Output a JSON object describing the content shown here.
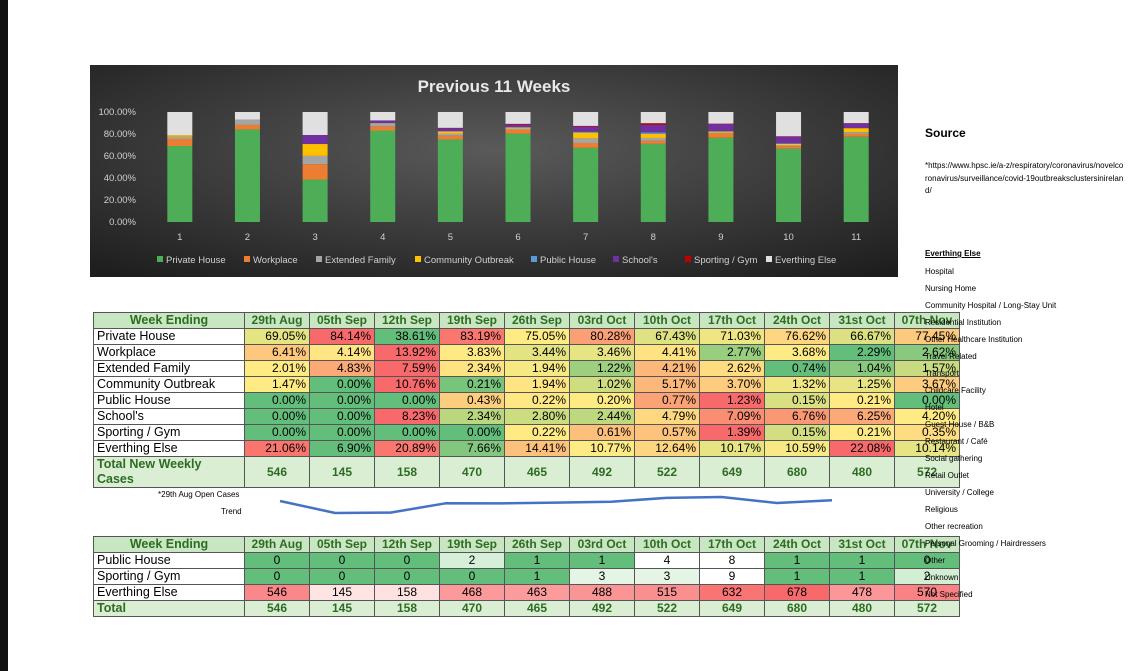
{
  "chart_data": {
    "type": "bar",
    "stacked": true,
    "title": "Previous 11 Weeks",
    "categories": [
      "1",
      "2",
      "3",
      "4",
      "5",
      "6",
      "7",
      "8",
      "9",
      "10",
      "11"
    ],
    "ylim": [
      0,
      100
    ],
    "yticks": [
      "0.00%",
      "20.00%",
      "40.00%",
      "60.00%",
      "80.00%",
      "100.00%"
    ],
    "legend_position": "bottom",
    "series": [
      {
        "name": "Private House",
        "color": "#4eae57",
        "values": [
          69.05,
          84.14,
          38.61,
          83.19,
          75.05,
          80.28,
          67.43,
          71.03,
          76.62,
          66.67,
          77.45
        ]
      },
      {
        "name": "Workplace",
        "color": "#ed7d31",
        "values": [
          6.41,
          4.14,
          13.92,
          3.83,
          3.44,
          3.46,
          4.41,
          2.77,
          3.68,
          2.29,
          2.62
        ]
      },
      {
        "name": "Extended Family",
        "color": "#a5a5a5",
        "values": [
          2.01,
          4.83,
          7.59,
          2.34,
          1.94,
          1.22,
          4.21,
          2.62,
          0.74,
          1.04,
          1.57
        ]
      },
      {
        "name": "Community Outbreak",
        "color": "#ffc000",
        "values": [
          1.47,
          0.0,
          10.76,
          0.21,
          1.94,
          1.02,
          5.17,
          3.7,
          1.32,
          1.25,
          3.67
        ]
      },
      {
        "name": "Public House",
        "color": "#5b9bd5",
        "values": [
          0.0,
          0.0,
          0.0,
          0.43,
          0.22,
          0.2,
          0.77,
          1.23,
          0.15,
          0.21,
          0.0
        ]
      },
      {
        "name": "School's",
        "color": "#7030a0",
        "values": [
          0.0,
          0.0,
          8.23,
          2.34,
          2.8,
          2.44,
          4.79,
          7.09,
          6.76,
          6.25,
          4.2
        ]
      },
      {
        "name": "Sporting / Gym",
        "color": "#c00000",
        "values": [
          0.0,
          0.0,
          0.0,
          0.0,
          0.22,
          0.61,
          0.57,
          1.39,
          0.15,
          0.21,
          0.35
        ]
      },
      {
        "name": "Everthing Else",
        "color": "#e0e0e0",
        "values": [
          21.06,
          6.9,
          20.89,
          7.66,
          14.41,
          10.77,
          12.64,
          10.17,
          10.59,
          22.08,
          10.14
        ]
      }
    ]
  },
  "table1": {
    "header_label": "Week Ending",
    "weeks": [
      "29th Aug",
      "05th Sep",
      "12th Sep",
      "19th Sep",
      "26th Sep",
      "03rd Oct",
      "10th Oct",
      "17th Oct",
      "24th Oct",
      "31st Oct",
      "07th Nov"
    ],
    "rows": [
      {
        "label": "Private House",
        "values": [
          "69.05%",
          "84.14%",
          "38.61%",
          "83.19%",
          "75.05%",
          "80.28%",
          "67.43%",
          "71.03%",
          "76.62%",
          "66.67%",
          "77.45%"
        ]
      },
      {
        "label": "Workplace",
        "values": [
          "6.41%",
          "4.14%",
          "13.92%",
          "3.83%",
          "3.44%",
          "3.46%",
          "4.41%",
          "2.77%",
          "3.68%",
          "2.29%",
          "2.62%"
        ]
      },
      {
        "label": "Extended Family",
        "values": [
          "2.01%",
          "4.83%",
          "7.59%",
          "2.34%",
          "1.94%",
          "1.22%",
          "4.21%",
          "2.62%",
          "0.74%",
          "1.04%",
          "1.57%"
        ]
      },
      {
        "label": "Community Outbreak",
        "values": [
          "1.47%",
          "0.00%",
          "10.76%",
          "0.21%",
          "1.94%",
          "1.02%",
          "5.17%",
          "3.70%",
          "1.32%",
          "1.25%",
          "3.67%"
        ]
      },
      {
        "label": "Public House",
        "values": [
          "0.00%",
          "0.00%",
          "0.00%",
          "0.43%",
          "0.22%",
          "0.20%",
          "0.77%",
          "1.23%",
          "0.15%",
          "0.21%",
          "0.00%"
        ]
      },
      {
        "label": "School's",
        "values": [
          "0.00%",
          "0.00%",
          "8.23%",
          "2.34%",
          "2.80%",
          "2.44%",
          "4.79%",
          "7.09%",
          "6.76%",
          "6.25%",
          "4.20%"
        ]
      },
      {
        "label": "Sporting / Gym",
        "values": [
          "0.00%",
          "0.00%",
          "0.00%",
          "0.00%",
          "0.22%",
          "0.61%",
          "0.57%",
          "1.39%",
          "0.15%",
          "0.21%",
          "0.35%"
        ]
      },
      {
        "label": "Everthing Else",
        "values": [
          "21.06%",
          "6.90%",
          "20.89%",
          "7.66%",
          "14.41%",
          "10.77%",
          "12.64%",
          "10.17%",
          "10.59%",
          "22.08%",
          "10.14%"
        ]
      }
    ],
    "total_label": "Total New Weekly Cases",
    "totals": [
      "546",
      "145",
      "158",
      "470",
      "465",
      "492",
      "522",
      "649",
      "680",
      "480",
      "572"
    ]
  },
  "note_open_cases": "*29th Aug Open Cases",
  "trend_label": "Trend",
  "table2": {
    "header_label": "Week Ending",
    "weeks": [
      "29th Aug",
      "05th Sep",
      "12th Sep",
      "19th Sep",
      "26th Sep",
      "03rd Oct",
      "10th Oct",
      "17th Oct",
      "24th Oct",
      "31st Oct",
      "07th Nov"
    ],
    "rows": [
      {
        "label": "Public House",
        "values": [
          "0",
          "0",
          "0",
          "2",
          "1",
          "1",
          "4",
          "8",
          "1",
          "1",
          "0"
        ]
      },
      {
        "label": "Sporting / Gym",
        "values": [
          "0",
          "0",
          "0",
          "0",
          "1",
          "3",
          "3",
          "9",
          "1",
          "1",
          "2"
        ]
      },
      {
        "label": "Everthing Else",
        "values": [
          "546",
          "145",
          "158",
          "468",
          "463",
          "488",
          "515",
          "632",
          "678",
          "478",
          "570"
        ]
      }
    ],
    "total_label": "Total",
    "totals": [
      "546",
      "145",
      "158",
      "470",
      "465",
      "492",
      "522",
      "649",
      "680",
      "480",
      "572"
    ]
  },
  "source": {
    "title": "Source",
    "text": "*https://www.hpsc.ie/a-z/respiratory/coronavirus/novelcoronavirus/surveillance/covid-19outbreaksclustersinireland/"
  },
  "everything_else": {
    "title": "Everthing Else",
    "items": [
      "Hospital",
      "Nursing Home",
      "Community Hospital / Long-Stay Unit",
      "Residential Institution",
      "Other Healthcare Institution",
      "Travel Related",
      "Transport",
      "Childcare Facility",
      "Hotel",
      "Guest House / B&B",
      "Restaurant / Café",
      "Social gathering",
      "Retail Outlet",
      "University / College",
      "Religious",
      "Other recreation",
      "Personal Grooming / Hairdressers",
      "Other",
      "Unknown",
      "Not Specified"
    ]
  }
}
